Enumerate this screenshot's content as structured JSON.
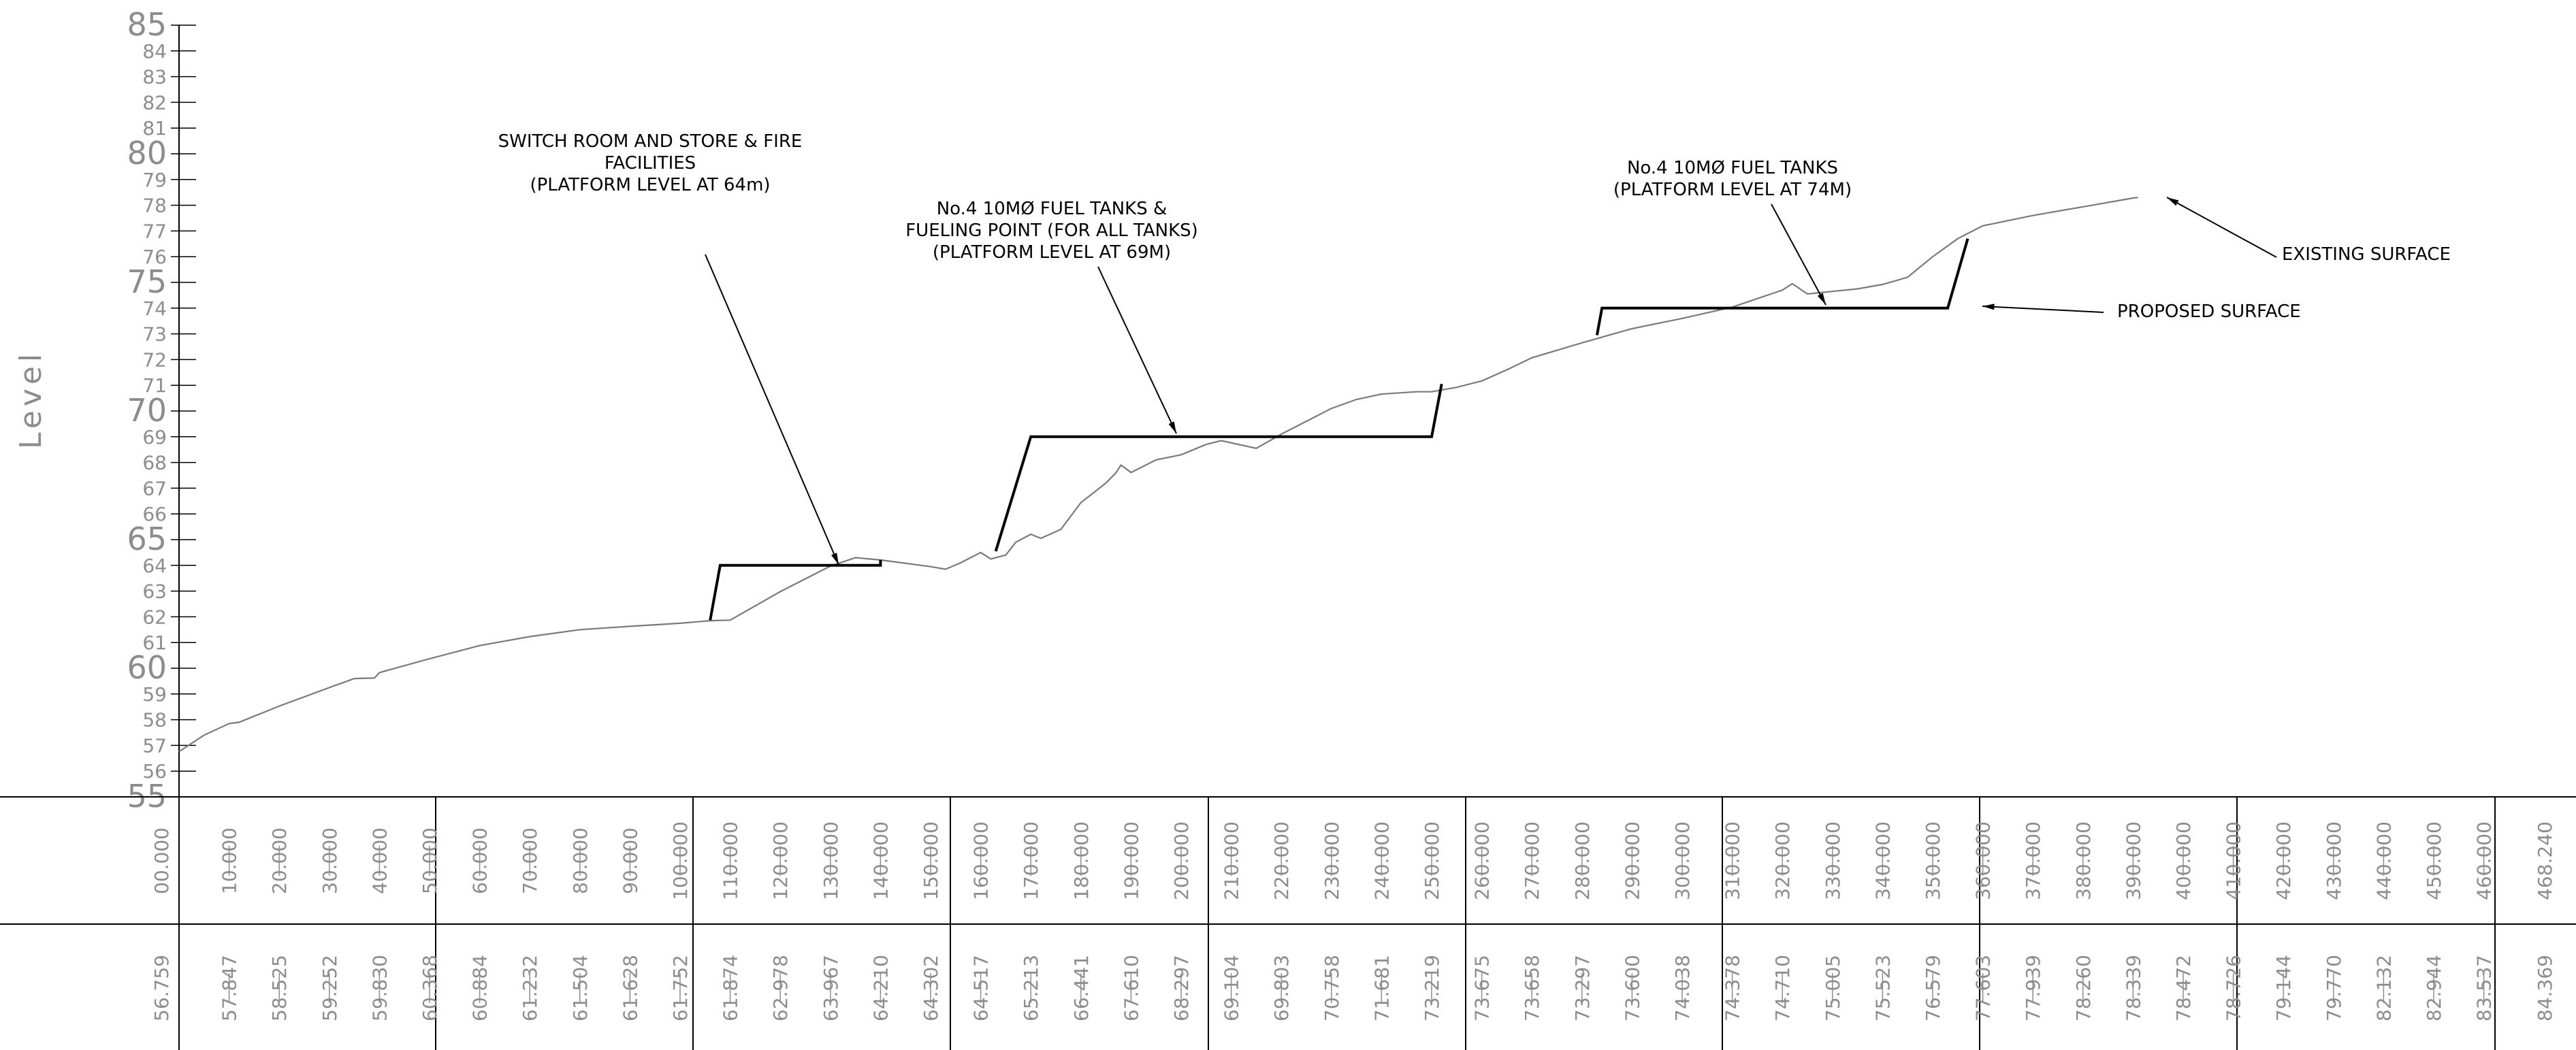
{
  "y_axis": {
    "label": "Level",
    "min": 55,
    "max": 85
  },
  "chainages": [
    "00.000",
    "10.000",
    "20.000",
    "30.000",
    "40.000",
    "50.000",
    "60.000",
    "70.000",
    "80.000",
    "90.000",
    "100.000",
    "110.000",
    "120.000",
    "130.000",
    "140.000",
    "150.000",
    "160.000",
    "170.000",
    "180.000",
    "190.000",
    "200.000",
    "210.000",
    "220.000",
    "230.000",
    "240.000",
    "250.000",
    "260.000",
    "270.000",
    "280.000",
    "290.000",
    "300.000",
    "310.000",
    "320.000",
    "330.000",
    "340.000",
    "350.000",
    "360.000",
    "370.000",
    "380.000",
    "390.000",
    "400.000",
    "410.000",
    "420.000",
    "430.000",
    "440.000",
    "450.000",
    "460.000",
    "468.240"
  ],
  "levels": [
    "56.759",
    "57.847",
    "58.525",
    "59.252",
    "59.830",
    "60.368",
    "60.884",
    "61.232",
    "61.504",
    "61.628",
    "61.752",
    "61.874",
    "62.978",
    "63.967",
    "64.210",
    "64.302",
    "64.517",
    "65.213",
    "66.441",
    "67.610",
    "68.297",
    "69.104",
    "69.803",
    "70.758",
    "71.681",
    "73.219",
    "73.675",
    "73.658",
    "73.297",
    "73.600",
    "74.038",
    "74.378",
    "74.710",
    "75.005",
    "75.523",
    "76.579",
    "77.603",
    "77.939",
    "78.260",
    "78.339",
    "78.472",
    "78.726",
    "79.144",
    "79.770",
    "82.132",
    "82.944",
    "83.537",
    "84.369"
  ],
  "annotations": {
    "switch_room": "SWITCH ROOM AND STORE & FIRE\nFACILITIES\n(PLATFORM LEVEL AT 64m)",
    "fuel_tanks_69": "No.4  10MØ  FUEL TANKS &\nFUELING POINT (FOR ALL TANKS)\n(PLATFORM LEVEL AT 69M)",
    "fuel_tanks_74": "No.4  10MØ  FUEL TANKS\n(PLATFORM LEVEL AT 74M)",
    "existing_surface": "EXISTING SURFACE",
    "proposed_surface": "PROPOSED SURFACE"
  },
  "colors": {
    "ink": "#000000",
    "axis_text": "#8c8c8c",
    "existing_line": "#7a7a7a"
  }
}
